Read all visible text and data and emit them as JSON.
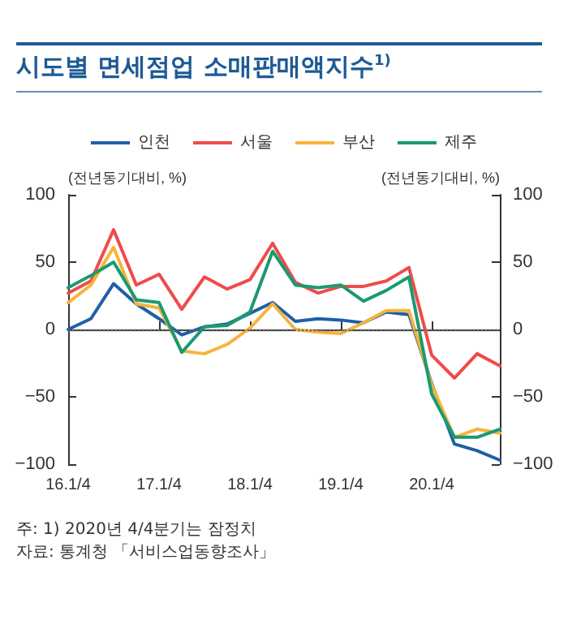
{
  "chart_data": {
    "type": "line",
    "title": "시도별 면세점업 소매판매액지수$^{1)}$",
    "ylabel": "(전년동기대비, %)",
    "y2label": "(전년동기대비, %)",
    "categories": [
      "16.1/4",
      null,
      null,
      null,
      "17.1/4",
      null,
      null,
      null,
      "18.1/4",
      null,
      null,
      null,
      "19.1/4",
      null,
      null,
      null,
      "20.1/4",
      null,
      null,
      null
    ],
    "series": [
      {
        "name": "인천",
        "color": "#1f5fa8",
        "values": [
          0,
          8,
          34,
          19,
          8,
          -4,
          2,
          4,
          12,
          20,
          6,
          8,
          7,
          5,
          13,
          11,
          -40,
          -85,
          -90,
          -97
        ]
      },
      {
        "name": "서울",
        "color": "#ef4b4b",
        "values": [
          27,
          36,
          74,
          33,
          41,
          15,
          39,
          30,
          37,
          64,
          35,
          27,
          32,
          32,
          36,
          46,
          -19,
          -36,
          -18,
          -27
        ]
      },
      {
        "name": "부산",
        "color": "#f7b33b",
        "values": [
          20,
          33,
          61,
          19,
          16,
          -16,
          -18,
          -11,
          1,
          19,
          0,
          -2,
          -3,
          5,
          14,
          14,
          -41,
          -80,
          -74,
          -77
        ]
      },
      {
        "name": "제주",
        "color": "#1a9a72",
        "values": [
          31,
          40,
          50,
          22,
          20,
          -17,
          2,
          3,
          13,
          58,
          33,
          31,
          33,
          21,
          29,
          39,
          -48,
          -80,
          -80,
          -74
        ]
      }
    ],
    "ylim": [
      -100,
      100
    ],
    "yticks": [
      {
        "value": -100,
        "label": "−100"
      },
      {
        "value": -50,
        "label": "−50"
      },
      0,
      50,
      100
    ],
    "y2lim": [
      -100,
      100
    ],
    "y2ticks": [
      {
        "value": -100,
        "label": "−100"
      },
      {
        "value": -50,
        "label": "−50"
      },
      0,
      50,
      100
    ],
    "ref_lines": [
      {
        "axis": "y",
        "value": 0,
        "color": "#666666",
        "line_style": "dotted"
      }
    ],
    "legend": "top",
    "grid": false,
    "marker": "none",
    "line_style": "solid",
    "annotations": [
      "주: 1) 2020년 4/4분기는 잠정치",
      "자료: 통계청 「서비스업동향조사」"
    ]
  }
}
